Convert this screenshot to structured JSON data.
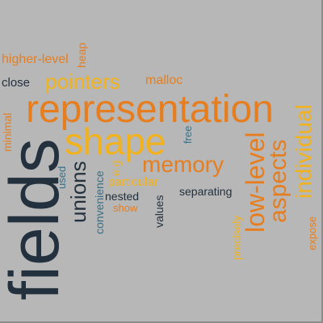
{
  "palette": {
    "background": "#b7b7b7",
    "dark": "#22313d",
    "orange": "#e67e1f",
    "gold": "#f2b21c",
    "teal": "#3a6f86"
  },
  "words": {
    "fields": "fields",
    "representation": "representation",
    "shape": "shape",
    "memory": "memory",
    "low_level": "low-level",
    "aspects": "aspects",
    "individual": "individual",
    "unions": "unions",
    "pointers": "pointers",
    "higher_level": "higher-level",
    "heap": "heap",
    "close": "close",
    "malloc": "malloc",
    "minimal": "minimal",
    "used": "used",
    "convenience": "convenience",
    "eg": "e.g",
    "particular": "particular",
    "nested": "nested",
    "show": "show",
    "values": "values",
    "free": "free",
    "separating": "separating",
    "precisely": "precisely",
    "expose": "expose"
  }
}
